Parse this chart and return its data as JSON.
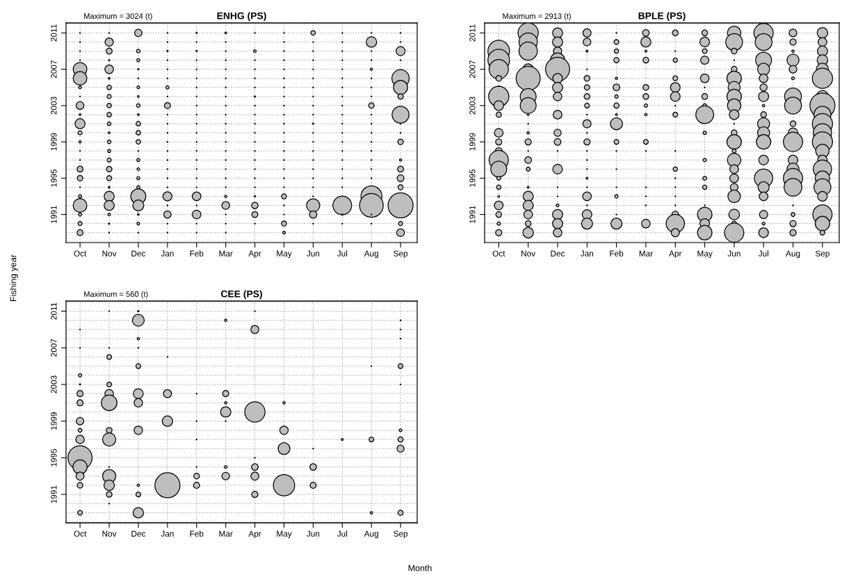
{
  "chart_data": [
    {
      "type": "bubble",
      "title": "ENHG (PS)",
      "annotations": [
        "Maximum = 3024 (t)"
      ],
      "ylabel": "Fishing year",
      "categories": [
        "Oct",
        "Nov",
        "Dec",
        "Jan",
        "Feb",
        "Mar",
        "Apr",
        "May",
        "Jun",
        "Jul",
        "Aug",
        "Sep"
      ],
      "ylim": [
        1987.9,
        2012.1
      ],
      "yticks": [
        1991,
        1995,
        1999,
        2003,
        2007,
        2011
      ],
      "grid": true,
      "series": [
        {
          "color": "#bebebe",
          "x": [
            "Oct",
            "Oct",
            "Oct",
            "Oct",
            "Oct",
            "Oct",
            "Oct",
            "Oct",
            "Oct",
            "Oct",
            "Oct",
            "Oct",
            "Oct",
            "Oct",
            "Oct",
            "Oct",
            "Oct",
            "Oct",
            "Oct",
            "Oct",
            "Oct",
            "Oct",
            "Oct"
          ],
          "values": [
            2011,
            2010,
            2009,
            2008,
            2007,
            2006,
            2005,
            2004,
            2003,
            2002,
            2001,
            2000,
            1999,
            1998,
            1997,
            1996,
            1995,
            1994,
            1993,
            1992,
            1991,
            1990,
            1989
          ],
          "sizes": [
            0.001,
            0.001,
            0.001,
            0.001,
            0.298,
            0.298,
            0.012,
            0.001,
            0.096,
            0.005,
            0.16,
            0.027,
            0.008,
            0.001,
            0.001,
            0.056,
            0.048,
            0.001,
            0.016,
            0.298,
            0.016,
            0.027,
            0.056
          ]
        },
        {
          "color": "#bebebe",
          "x": [
            "Nov",
            "Nov",
            "Nov",
            "Nov",
            "Nov",
            "Nov",
            "Nov",
            "Nov",
            "Nov",
            "Nov",
            "Nov",
            "Nov",
            "Nov",
            "Nov",
            "Nov",
            "Nov",
            "Nov",
            "Nov",
            "Nov",
            "Nov",
            "Nov",
            "Nov",
            "Nov"
          ],
          "values": [
            2011,
            2010,
            2009,
            2008,
            2007,
            2006,
            2005,
            2004,
            2003,
            2002,
            2001,
            2000,
            1999,
            1998,
            1997,
            1996,
            1995,
            1994,
            1993,
            1992,
            1991,
            1990,
            1989
          ],
          "sizes": [
            0.001,
            0.107,
            0.056,
            0.003,
            0.119,
            0.005,
            0.033,
            0.027,
            0.033,
            0.033,
            0.021,
            0.005,
            0.021,
            0.016,
            0.027,
            0.048,
            0.04,
            0.005,
            0.16,
            0.16,
            0.012,
            0.003,
            0.001
          ]
        },
        {
          "color": "#bebebe",
          "x": [
            "Dec",
            "Dec",
            "Dec",
            "Dec",
            "Dec",
            "Dec",
            "Dec",
            "Dec",
            "Dec",
            "Dec",
            "Dec",
            "Dec",
            "Dec",
            "Dec",
            "Dec",
            "Dec",
            "Dec",
            "Dec",
            "Dec",
            "Dec",
            "Dec",
            "Dec"
          ],
          "values": [
            2011,
            2009,
            2008,
            2007,
            2006,
            2005,
            2004,
            2003,
            2002,
            2001,
            2000,
            1999,
            1998,
            1997,
            1996,
            1995,
            1994,
            1993,
            1992,
            1991,
            1990,
            1989
          ],
          "sizes": [
            0.085,
            0.021,
            0.016,
            0.003,
            0.001,
            0.012,
            0.005,
            0.021,
            0.005,
            0.033,
            0.033,
            0.033,
            0.001,
            0.016,
            0.012,
            0.016,
            0.016,
            0.36,
            0.19,
            0.005,
            0.012,
            0.001
          ]
        },
        {
          "color": "#bebebe",
          "x": [
            "Jan",
            "Jan",
            "Jan",
            "Jan",
            "Jan",
            "Jan",
            "Jan",
            "Jan",
            "Jan",
            "Jan",
            "Jan",
            "Jan",
            "Jan",
            "Jan",
            "Jan",
            "Jan",
            "Jan",
            "Jan",
            "Jan",
            "Jan",
            "Jan",
            "Jan",
            "Jan"
          ],
          "values": [
            2011,
            2010,
            2009,
            2008,
            2007,
            2006,
            2005,
            2004,
            2003,
            2002,
            2001,
            2000,
            1999,
            1998,
            1997,
            1996,
            1995,
            1994,
            1993,
            1992,
            1991,
            1990,
            1989
          ],
          "sizes": [
            0.001,
            0.001,
            0.003,
            0.001,
            0.001,
            0.001,
            0.016,
            0.001,
            0.056,
            0.001,
            0.001,
            0.001,
            0.001,
            0.001,
            0.001,
            0.001,
            0.001,
            0.001,
            0.132,
            0.001,
            0.085,
            0.001,
            0.001
          ]
        },
        {
          "color": "#bebebe",
          "x": [
            "Feb",
            "Feb",
            "Feb",
            "Feb",
            "Feb",
            "Feb",
            "Feb",
            "Feb",
            "Feb",
            "Feb",
            "Feb",
            "Feb",
            "Feb",
            "Feb",
            "Feb",
            "Feb",
            "Feb",
            "Feb",
            "Feb",
            "Feb",
            "Feb",
            "Feb",
            "Feb"
          ],
          "values": [
            2011,
            2010,
            2009,
            2008,
            2007,
            2006,
            2005,
            2004,
            2003,
            2002,
            2001,
            2000,
            1999,
            1998,
            1997,
            1996,
            1995,
            1994,
            1993,
            1992,
            1991,
            1990,
            1989
          ],
          "sizes": [
            0.003,
            0.001,
            0.003,
            0.001,
            0.001,
            0.001,
            0.001,
            0.001,
            0.001,
            0.001,
            0.001,
            0.001,
            0.001,
            0.001,
            0.001,
            0.001,
            0.001,
            0.001,
            0.119,
            0.001,
            0.119,
            0.001,
            0.001
          ]
        },
        {
          "color": "#bebebe",
          "x": [
            "Mar",
            "Mar",
            "Mar",
            "Mar",
            "Mar",
            "Mar",
            "Mar",
            "Mar",
            "Mar",
            "Mar",
            "Mar",
            "Mar",
            "Mar",
            "Mar",
            "Mar",
            "Mar",
            "Mar",
            "Mar",
            "Mar",
            "Mar",
            "Mar",
            "Mar",
            "Mar"
          ],
          "values": [
            2011,
            2010,
            2009,
            2008,
            2007,
            2006,
            2005,
            2004,
            2003,
            2002,
            2001,
            2000,
            1999,
            1998,
            1997,
            1996,
            1995,
            1994,
            1993,
            1992,
            1991,
            1990,
            1989
          ],
          "sizes": [
            0.005,
            0.001,
            0.001,
            0.001,
            0.001,
            0.001,
            0.001,
            0.001,
            0.001,
            0.001,
            0.001,
            0.001,
            0.001,
            0.001,
            0.001,
            0.001,
            0.001,
            0.001,
            0.008,
            0.096,
            0.001,
            0.001,
            0.001
          ]
        },
        {
          "color": "#bebebe",
          "x": [
            "Apr",
            "Apr",
            "Apr",
            "Apr",
            "Apr",
            "Apr",
            "Apr",
            "Apr",
            "Apr",
            "Apr",
            "Apr",
            "Apr",
            "Apr",
            "Apr",
            "Apr",
            "Apr",
            "Apr",
            "Apr",
            "Apr",
            "Apr",
            "Apr"
          ],
          "values": [
            2011,
            2009,
            2008,
            2007,
            2006,
            2005,
            2004,
            2003,
            2002,
            2001,
            2000,
            1999,
            1998,
            1997,
            1996,
            1995,
            1994,
            1993,
            1992,
            1991,
            1990
          ],
          "sizes": [
            0.001,
            0.012,
            0.001,
            0.001,
            0.001,
            0.001,
            0.003,
            0.001,
            0.001,
            0.001,
            0.001,
            0.001,
            0.001,
            0.001,
            0.001,
            0.001,
            0.001,
            0.003,
            0.065,
            0.056,
            0.001
          ]
        },
        {
          "color": "#bebebe",
          "x": [
            "May",
            "May",
            "May",
            "May",
            "May",
            "May",
            "May",
            "May",
            "May",
            "May",
            "May",
            "May",
            "May",
            "May",
            "May",
            "May",
            "May",
            "May",
            "May",
            "May",
            "May",
            "May",
            "May"
          ],
          "values": [
            2011,
            2010,
            2009,
            2008,
            2007,
            2006,
            2005,
            2004,
            2003,
            2002,
            2001,
            2000,
            1999,
            1998,
            1997,
            1996,
            1995,
            1994,
            1993,
            1992,
            1991,
            1990,
            1989
          ],
          "sizes": [
            0.001,
            0.001,
            0.001,
            0.001,
            0.001,
            0.001,
            0.001,
            0.001,
            0.001,
            0.001,
            0.001,
            0.001,
            0.001,
            0.001,
            0.001,
            0.001,
            0.001,
            0.001,
            0.04,
            0.001,
            0.001,
            0.04,
            0.012
          ]
        },
        {
          "color": "#bebebe",
          "x": [
            "Jun",
            "Jun",
            "Jun",
            "Jun",
            "Jun",
            "Jun",
            "Jun",
            "Jun",
            "Jun",
            "Jun",
            "Jun",
            "Jun",
            "Jun",
            "Jun",
            "Jun",
            "Jun",
            "Jun",
            "Jun",
            "Jun",
            "Jun",
            "Jun",
            "Jun"
          ],
          "values": [
            2011,
            2010,
            2009,
            2008,
            2007,
            2006,
            2005,
            2004,
            2003,
            2002,
            2001,
            2000,
            1999,
            1998,
            1997,
            1996,
            1995,
            1994,
            1993,
            1992,
            1991,
            1990
          ],
          "sizes": [
            0.033,
            0.001,
            0.001,
            0.001,
            0.001,
            0.001,
            0.001,
            0.001,
            0.001,
            0.001,
            0.003,
            0.001,
            0.001,
            0.001,
            0.001,
            0.001,
            0.001,
            0.001,
            0.001,
            0.278,
            0.085,
            0.001
          ]
        },
        {
          "color": "#bebebe",
          "x": [
            "Jul",
            "Jul",
            "Jul",
            "Jul",
            "Jul",
            "Jul",
            "Jul",
            "Jul",
            "Jul",
            "Jul",
            "Jul",
            "Jul",
            "Jul",
            "Jul",
            "Jul",
            "Jul",
            "Jul",
            "Jul",
            "Jul",
            "Jul",
            "Jul",
            "Jul"
          ],
          "values": [
            2011,
            2010,
            2009,
            2008,
            2007,
            2006,
            2005,
            2004,
            2003,
            2002,
            2001,
            2000,
            1999,
            1998,
            1997,
            1996,
            1995,
            1994,
            1993,
            1992,
            1991,
            1990
          ],
          "sizes": [
            0.001,
            0.001,
            0.001,
            0.001,
            0.001,
            0.001,
            0.001,
            0.001,
            0.001,
            0.001,
            0.001,
            0.001,
            0.001,
            0.001,
            0.001,
            0.001,
            0.001,
            0.001,
            0.001,
            0.556,
            0.003,
            0.001
          ]
        },
        {
          "color": "#bebebe",
          "x": [
            "Aug",
            "Aug",
            "Aug",
            "Aug",
            "Aug",
            "Aug",
            "Aug",
            "Aug",
            "Aug",
            "Aug",
            "Aug",
            "Aug",
            "Aug",
            "Aug",
            "Aug",
            "Aug",
            "Aug",
            "Aug",
            "Aug",
            "Aug",
            "Aug"
          ],
          "values": [
            2011,
            2010,
            2009,
            2008,
            2007,
            2006,
            2005,
            2004,
            2003,
            2002,
            2001,
            2000,
            1999,
            1998,
            1997,
            1996,
            1995,
            1993,
            1992,
            1991,
            1990
          ],
          "sizes": [
            0.001,
            0.175,
            0.001,
            0.001,
            0.008,
            0.001,
            0.001,
            0.001,
            0.048,
            0.001,
            0.001,
            0.001,
            0.001,
            0.001,
            0.001,
            0.001,
            0.001,
            0.7,
            0.894,
            0.001,
            0.001
          ]
        },
        {
          "color": "#bebebe",
          "x": [
            "Sep",
            "Sep",
            "Sep",
            "Sep",
            "Sep",
            "Sep",
            "Sep",
            "Sep",
            "Sep",
            "Sep",
            "Sep",
            "Sep",
            "Sep",
            "Sep",
            "Sep",
            "Sep",
            "Sep",
            "Sep"
          ],
          "values": [
            2011,
            2010,
            2009,
            2008,
            2006,
            2005,
            2004,
            2002,
            2001,
            2000,
            1999,
            1997,
            1996,
            1995,
            1994,
            1992,
            1990,
            1989
          ],
          "sizes": [
            0.001,
            0.001,
            0.132,
            0.001,
            0.477,
            0.318,
            0.048,
            0.453,
            0.001,
            0.001,
            0.048,
            0.008,
            0.056,
            0.074,
            0.04,
            1,
            0.027,
            0.096
          ]
        }
      ]
    },
    {
      "type": "bubble",
      "title": "BPLE (PS)",
      "annotations": [
        "Maximum = 2913 (t)"
      ],
      "categories": [
        "Oct",
        "Nov",
        "Dec",
        "Jan",
        "Feb",
        "Mar",
        "Apr",
        "May",
        "Jun",
        "Jul",
        "Aug",
        "Sep"
      ],
      "ylim": [
        1987.9,
        2012.1
      ],
      "yticks": [
        1991,
        1995,
        1999,
        2003,
        2007,
        2011
      ],
      "grid": true,
      "series": [
        {
          "color": "#bebebe",
          "x": [
            "Oct",
            "Oct",
            "Oct",
            "Oct",
            "Oct",
            "Oct",
            "Oct",
            "Oct",
            "Oct",
            "Oct",
            "Oct",
            "Oct",
            "Oct",
            "Oct",
            "Oct",
            "Oct",
            "Oct",
            "Oct",
            "Oct",
            "Oct",
            "Oct"
          ],
          "values": [
            2010,
            2009,
            2008,
            2007,
            2006,
            2005,
            2004,
            2003,
            2002,
            2000,
            1999,
            1998,
            1997,
            1996,
            1995,
            1994,
            1993,
            1992,
            1991,
            1990,
            1989
          ],
          "sizes": [
            0.013,
            0.749,
            0.749,
            0.592,
            0.053,
            0.013,
            0.652,
            0.148,
            0.045,
            0.12,
            0.063,
            0.072,
            0.592,
            0.403,
            0.024,
            0.03,
            0.006,
            0.12,
            0.053,
            0.018,
            0.063
          ]
        },
        {
          "color": "#bebebe",
          "x": [
            "Nov",
            "Nov",
            "Nov",
            "Nov",
            "Nov",
            "Nov",
            "Nov",
            "Nov",
            "Nov",
            "Nov",
            "Nov",
            "Nov",
            "Nov",
            "Nov",
            "Nov",
            "Nov",
            "Nov",
            "Nov",
            "Nov",
            "Nov"
          ],
          "values": [
            2011,
            2010,
            2009,
            2007,
            2006,
            2004,
            2003,
            2002,
            2001,
            2000,
            1999,
            1998,
            1997,
            1996,
            1994,
            1993,
            1992,
            1991,
            1990,
            1989
          ],
          "sizes": [
            0.652,
            0.534,
            0.534,
            0.179,
            0.925,
            0.403,
            0.403,
            0.006,
            0.001,
            0.009,
            0.063,
            0.001,
            0.072,
            0.024,
            0.006,
            0.163,
            0.163,
            0.12,
            0.053,
            0.179
          ]
        },
        {
          "color": "#bebebe",
          "x": [
            "Dec",
            "Dec",
            "Dec",
            "Dec",
            "Dec",
            "Dec",
            "Dec",
            "Dec",
            "Dec",
            "Dec",
            "Dec",
            "Dec",
            "Dec",
            "Dec",
            "Dec",
            "Dec",
            "Dec",
            "Dec",
            "Dec"
          ],
          "values": [
            2011,
            2010,
            2009,
            2008,
            2007,
            2006,
            2005,
            2004,
            2002,
            2000,
            1999,
            1998,
            1996,
            1994,
            1993,
            1992,
            1991,
            1990,
            1989
          ],
          "sizes": [
            0.163,
            0.163,
            0.107,
            0.333,
            0.925,
            0.148,
            0.163,
            0.12,
            0.12,
            0.083,
            0.072,
            0.001,
            0.148,
            0.001,
            0.001,
            0.013,
            0.163,
            0.163,
            0.12
          ]
        },
        {
          "color": "#bebebe",
          "x": [
            "Jan",
            "Jan",
            "Jan",
            "Jan",
            "Jan",
            "Jan",
            "Jan",
            "Jan",
            "Jan",
            "Jan",
            "Jan",
            "Jan",
            "Jan",
            "Jan",
            "Jan",
            "Jan",
            "Jan",
            "Jan",
            "Jan",
            "Jan",
            "Jan"
          ],
          "values": [
            2011,
            2010,
            2009,
            2007,
            2006,
            2005,
            2004,
            2003,
            2002,
            2001,
            2000,
            1999,
            1998,
            1997,
            1996,
            1995,
            1994,
            1993,
            1992,
            1991,
            1990
          ],
          "sizes": [
            0.107,
            0.095,
            0.006,
            0.001,
            0.053,
            0.045,
            0.053,
            0.037,
            0.001,
            0.107,
            0.001,
            0.063,
            0.001,
            0.001,
            0.001,
            0.006,
            0.001,
            0.12,
            0.001,
            0.148,
            0.196
          ]
        },
        {
          "color": "#bebebe",
          "x": [
            "Feb",
            "Feb",
            "Feb",
            "Feb",
            "Feb",
            "Feb",
            "Feb",
            "Feb",
            "Feb",
            "Feb",
            "Feb",
            "Feb",
            "Feb",
            "Feb",
            "Feb",
            "Feb",
            "Feb"
          ],
          "values": [
            2011,
            2010,
            2009,
            2008,
            2006,
            2005,
            2004,
            2003,
            2002,
            2001,
            1999,
            1998,
            1996,
            1994,
            1993,
            1991,
            1990
          ],
          "sizes": [
            0.001,
            0.037,
            0.03,
            0.045,
            0.009,
            0.072,
            0.018,
            0.045,
            0.006,
            0.231,
            0.037,
            0.001,
            0.001,
            0.001,
            0.018,
            0.001,
            0.196
          ]
        },
        {
          "color": "#bebebe",
          "x": [
            "Mar",
            "Mar",
            "Mar",
            "Mar",
            "Mar",
            "Mar",
            "Mar",
            "Mar",
            "Mar",
            "Mar",
            "Mar",
            "Mar",
            "Mar",
            "Mar"
          ],
          "values": [
            2011,
            2010,
            2009,
            2008,
            2005,
            2004,
            2003,
            2002,
            1999,
            1998,
            1994,
            1993,
            1992,
            1990
          ],
          "sizes": [
            0.072,
            0.163,
            0.006,
            0.053,
            0.053,
            0.053,
            0.018,
            0.009,
            0.037,
            0.001,
            0.001,
            0.001,
            0.001,
            0.12
          ]
        },
        {
          "color": "#bebebe",
          "x": [
            "Apr",
            "Apr",
            "Apr",
            "Apr",
            "Apr",
            "Apr",
            "Apr",
            "Apr",
            "Apr",
            "Apr",
            "Apr",
            "Apr",
            "Apr",
            "Apr",
            "Apr",
            "Apr",
            "Apr"
          ],
          "values": [
            2011,
            2009,
            2008,
            2006,
            2005,
            2004,
            2003,
            2002,
            1998,
            1996,
            1995,
            1994,
            1993,
            1992,
            1991,
            1990,
            1989
          ],
          "sizes": [
            0.053,
            0.001,
            0.03,
            0.037,
            0.148,
            0.148,
            0.001,
            0.037,
            0.001,
            0.03,
            0.001,
            0.001,
            0.001,
            0.001,
            0.072,
            0.534,
            0.107
          ]
        },
        {
          "color": "#bebebe",
          "x": [
            "May",
            "May",
            "May",
            "May",
            "May",
            "May",
            "May",
            "May",
            "May",
            "May",
            "May",
            "May",
            "May",
            "May",
            "May",
            "May",
            "May"
          ],
          "values": [
            2011,
            2010,
            2009,
            2008,
            2006,
            2005,
            2004,
            2003,
            2002,
            2000,
            1997,
            1995,
            1994,
            1992,
            1991,
            1990,
            1989
          ],
          "sizes": [
            0.053,
            0.148,
            0.037,
            0.107,
            0.12,
            0.001,
            0.053,
            0.024,
            0.506,
            0.018,
            0.018,
            0.024,
            0.03,
            0.001,
            0.333,
            0.148,
            0.333
          ]
        },
        {
          "color": "#bebebe",
          "x": [
            "Jun",
            "Jun",
            "Jun",
            "Jun",
            "Jun",
            "Jun",
            "Jun",
            "Jun",
            "Jun",
            "Jun",
            "Jun",
            "Jun",
            "Jun",
            "Jun",
            "Jun",
            "Jun",
            "Jun",
            "Jun",
            "Jun",
            "Jun",
            "Jun",
            "Jun"
          ],
          "values": [
            2011,
            2010,
            2009,
            2008,
            2007,
            2006,
            2005,
            2004,
            2003,
            2002,
            2001,
            2000,
            1999,
            1998,
            1997,
            1996,
            1995,
            1994,
            1993,
            1991,
            1990,
            1989
          ],
          "sizes": [
            0.29,
            0.453,
            0.053,
            0.001,
            0.053,
            0.333,
            0.231,
            0.333,
            0.29,
            0.148,
            0.001,
            0.053,
            0.333,
            0.024,
            0.29,
            0.12,
            0.12,
            0.095,
            0.25,
            0.179,
            0.037,
            0.592
          ]
        },
        {
          "color": "#bebebe",
          "x": [
            "Jul",
            "Jul",
            "Jul",
            "Jul",
            "Jul",
            "Jul",
            "Jul",
            "Jul",
            "Jul",
            "Jul",
            "Jul",
            "Jul",
            "Jul",
            "Jul",
            "Jul",
            "Jul",
            "Jul",
            "Jul",
            "Jul"
          ],
          "values": [
            2011,
            2010,
            2008,
            2007,
            2006,
            2005,
            2004,
            2003,
            2002,
            2001,
            2000,
            1999,
            1997,
            1995,
            1994,
            1993,
            1991,
            1990,
            1989
          ],
          "sizes": [
            0.592,
            0.453,
            0.403,
            0.231,
            0.12,
            0.083,
            0.163,
            0.009,
            0.053,
            0.231,
            0.231,
            0.333,
            0.148,
            0.534,
            0.196,
            0.12,
            0.107,
            0.013,
            0.148
          ]
        },
        {
          "color": "#bebebe",
          "x": [
            "Aug",
            "Aug",
            "Aug",
            "Aug",
            "Aug",
            "Aug",
            "Aug",
            "Aug",
            "Aug",
            "Aug",
            "Aug",
            "Aug",
            "Aug",
            "Aug",
            "Aug",
            "Aug",
            "Aug",
            "Aug",
            "Aug"
          ],
          "values": [
            2011,
            2010,
            2009,
            2008,
            2007,
            2006,
            2004,
            2003,
            2001,
            2000,
            1999,
            1997,
            1996,
            1995,
            1994,
            1992,
            1991,
            1990,
            1989
          ],
          "sizes": [
            0.095,
            0.063,
            0.009,
            0.231,
            0.095,
            0.013,
            0.453,
            0.453,
            0.053,
            0.148,
            0.592,
            0.148,
            0.231,
            0.592,
            0.506,
            0.001,
            0.024,
            0.063,
            0.063
          ]
        },
        {
          "color": "#bebebe",
          "x": [
            "Sep",
            "Sep",
            "Sep",
            "Sep",
            "Sep",
            "Sep",
            "Sep",
            "Sep",
            "Sep",
            "Sep",
            "Sep",
            "Sep",
            "Sep",
            "Sep",
            "Sep",
            "Sep",
            "Sep",
            "Sep",
            "Sep",
            "Sep",
            "Sep"
          ],
          "values": [
            2011,
            2010,
            2009,
            2008,
            2007,
            2006,
            2004,
            2003,
            2002,
            2001,
            2000,
            1999,
            1998,
            1997,
            1996,
            1995,
            1994,
            1993,
            1991,
            1990,
            1989
          ],
          "sizes": [
            0.179,
            0.12,
            0.163,
            0.179,
            0.231,
            0.652,
            0.231,
            1,
            0.453,
            0.652,
            0.534,
            0.652,
            0.29,
            0.148,
            0.534,
            0.333,
            0.453,
            0.148,
            0.592,
            0.333,
            0.037
          ]
        }
      ]
    },
    {
      "type": "bubble",
      "title": "CEE (PS)",
      "annotations": [
        "Maximum = 560 (t)"
      ],
      "xlabel": "Month",
      "categories": [
        "Oct",
        "Nov",
        "Dec",
        "Jan",
        "Feb",
        "Mar",
        "Apr",
        "May",
        "Jun",
        "Jul",
        "Aug",
        "Sep"
      ],
      "ylim": [
        1987.9,
        2012.1
      ],
      "yticks": [
        1991,
        1995,
        1999,
        2003,
        2007,
        2011
      ],
      "grid": true,
      "series": [
        {
          "color": "#bebebe",
          "x": [
            "Oct",
            "Oct",
            "Oct",
            "Oct",
            "Oct",
            "Oct",
            "Oct",
            "Oct",
            "Oct",
            "Oct",
            "Oct",
            "Oct",
            "Oct",
            "Oct"
          ],
          "values": [
            2009,
            2007,
            2004,
            2003,
            2002,
            2001,
            1999,
            1998,
            1997,
            1995,
            1994,
            1993,
            1992,
            1989
          ],
          "sizes": [
            0.001,
            0.001,
            0.017,
            0.003,
            0.06,
            0.06,
            0.091,
            0.023,
            0.115,
            0.926,
            0.32,
            0.103,
            0.051,
            0.036
          ]
        },
        {
          "color": "#bebebe",
          "x": [
            "Nov",
            "Nov",
            "Nov",
            "Nov",
            "Nov",
            "Nov",
            "Nov",
            "Nov",
            "Nov",
            "Nov",
            "Nov",
            "Nov",
            "Nov"
          ],
          "values": [
            2011,
            2007,
            2006,
            2003,
            2002,
            2001,
            1998,
            1997,
            1994,
            1993,
            1992,
            1991,
            1990
          ],
          "sizes": [
            0.001,
            0.001,
            0.036,
            0.036,
            0.115,
            0.388,
            0.051,
            0.279,
            0.001,
            0.279,
            0.172,
            0.051,
            0.001
          ]
        },
        {
          "color": "#bebebe",
          "x": [
            "Dec",
            "Dec",
            "Dec",
            "Dec",
            "Dec",
            "Dec",
            "Dec",
            "Dec",
            "Dec",
            "Dec",
            "Dec"
          ],
          "values": [
            2011,
            2010,
            2008,
            2007,
            2005,
            2002,
            2001,
            1998,
            1992,
            1991,
            1989
          ],
          "sizes": [
            0.003,
            0.222,
            0.009,
            0.001,
            0.036,
            0.157,
            0.115,
            0.115,
            0.009,
            0.036,
            0.172
          ]
        },
        {
          "color": "#bebebe",
          "x": [
            "Jan",
            "Jan",
            "Jan",
            "Jan"
          ],
          "values": [
            2006,
            2002,
            1999,
            1992
          ],
          "sizes": [
            0.001,
            0.103,
            0.172,
            1
          ]
        },
        {
          "color": "#bebebe",
          "x": [
            "Feb",
            "Feb",
            "Feb",
            "Feb",
            "Feb",
            "Feb"
          ],
          "values": [
            2002,
            1999,
            1997,
            1994,
            1993,
            1992
          ],
          "sizes": [
            0.001,
            0.001,
            0.001,
            0.001,
            0.051,
            0.06
          ]
        },
        {
          "color": "#bebebe",
          "x": [
            "Mar",
            "Mar",
            "Mar",
            "Mar",
            "Mar",
            "Mar",
            "Mar"
          ],
          "values": [
            2010,
            2002,
            2001,
            2000,
            1999,
            1994,
            1993
          ],
          "sizes": [
            0.009,
            0.06,
            0.009,
            0.172,
            0.001,
            0.013,
            0.091
          ]
        },
        {
          "color": "#bebebe",
          "x": [
            "Apr",
            "Apr",
            "Apr",
            "Apr",
            "Apr",
            "Apr",
            "Apr"
          ],
          "values": [
            2011,
            2009,
            2000,
            1995,
            1994,
            1993,
            1991
          ],
          "sizes": [
            0.001,
            0.103,
            0.658,
            0.001,
            0.07,
            0.103,
            0.06
          ]
        },
        {
          "color": "#bebebe",
          "x": [
            "May",
            "May",
            "May",
            "May"
          ],
          "values": [
            2001,
            1998,
            1996,
            1992
          ],
          "sizes": [
            0.009,
            0.115,
            0.222,
            0.721
          ]
        },
        {
          "color": "#bebebe",
          "x": [
            "Jun",
            "Jun",
            "Jun"
          ],
          "values": [
            1996,
            1994,
            1992
          ],
          "sizes": [
            0.001,
            0.07,
            0.06
          ]
        },
        {
          "color": "#bebebe",
          "x": [
            "Jul"
          ],
          "values": [
            1997
          ],
          "sizes": [
            0.006
          ]
        },
        {
          "color": "#bebebe",
          "x": [
            "Aug",
            "Aug",
            "Aug"
          ],
          "values": [
            2005,
            1997,
            1989
          ],
          "sizes": [
            0.001,
            0.036,
            0.009
          ]
        },
        {
          "color": "#bebebe",
          "x": [
            "Sep",
            "Sep",
            "Sep",
            "Sep",
            "Sep",
            "Sep",
            "Sep",
            "Sep",
            "Sep"
          ],
          "values": [
            2010,
            2009,
            2008,
            2005,
            2003,
            1998,
            1997,
            1996,
            1989
          ],
          "sizes": [
            0.001,
            0.001,
            0.001,
            0.036,
            0.001,
            0.013,
            0.043,
            0.08,
            0.043
          ]
        }
      ]
    }
  ]
}
